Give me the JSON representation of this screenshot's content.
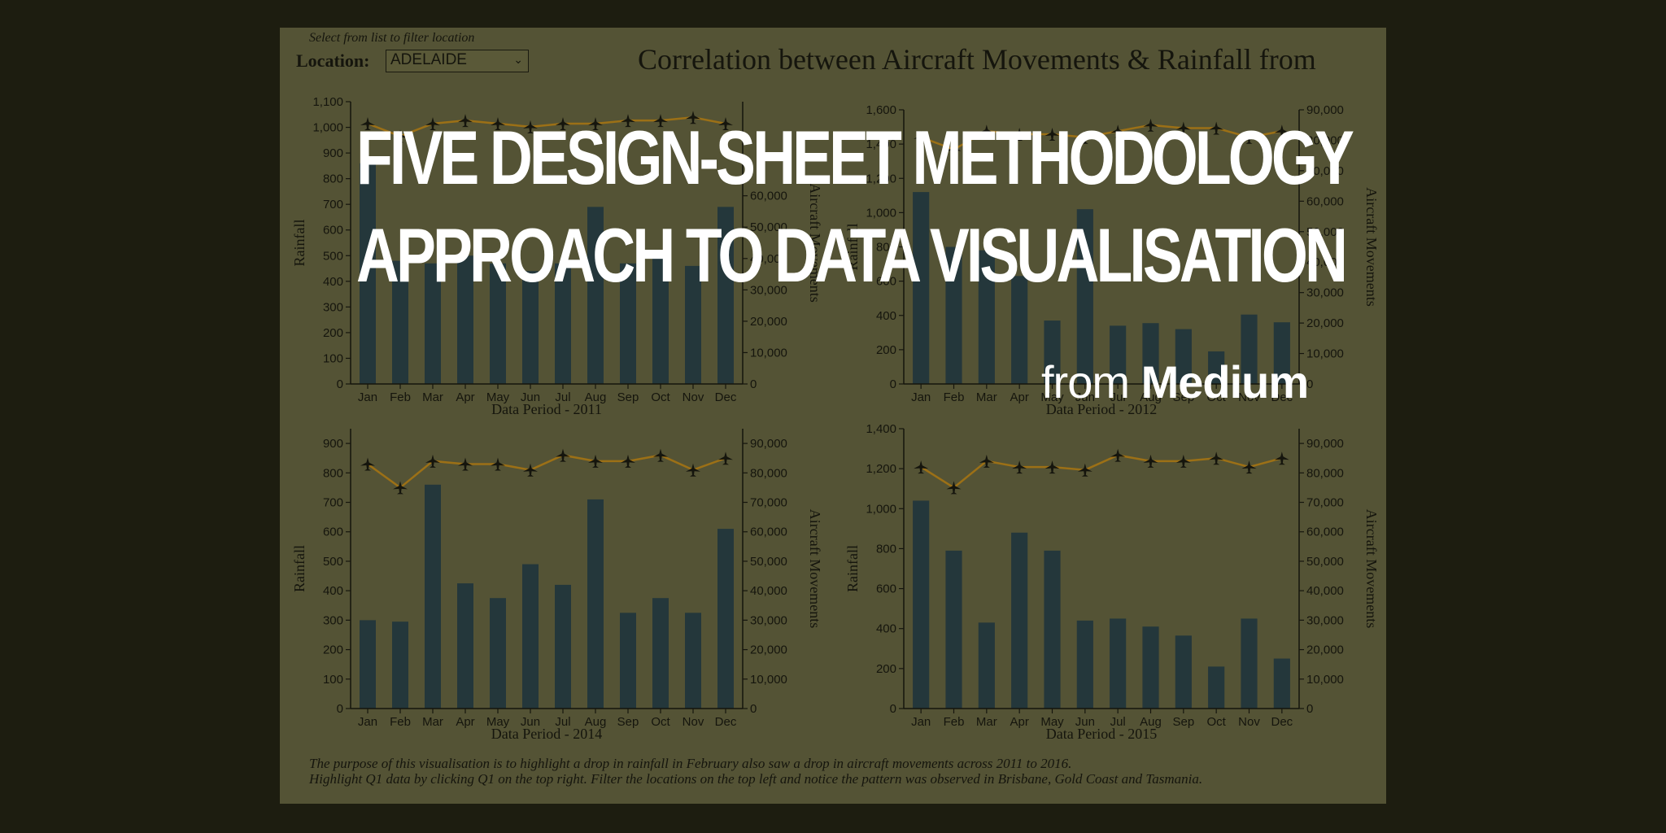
{
  "filter": {
    "hint": "Select from list to filter location",
    "label": "Location:",
    "selected": "ADELAIDE"
  },
  "title": "Correlation between Aircraft Movements & Rainfall from",
  "footnote": [
    "The purpose of this visualisation is to highlight a drop in rainfall in February also saw a drop in aircraft movements across 2011 to 2016.",
    "Highlight Q1 data by clicking Q1 on the top right. Filter the locations on the top left and notice the pattern was observed in Brisbane, Gold Coast and Tasmania."
  ],
  "overlay": {
    "headline_line1": "FIVE DESIGN-SHEET METHODOLOGY",
    "headline_line2": "APPROACH TO DATA VISUALISATION",
    "source_prefix": "from",
    "source_name": "Medium"
  },
  "colors": {
    "bar": "#24373b",
    "line": "#9c7016",
    "axis": "#15150d",
    "overlay_text": "#ffffff"
  },
  "chart_data": [
    {
      "type": "bar",
      "xlabel": "Data Period - 2011",
      "ylabel": "Rainfall",
      "y2label": "Aircraft Movements",
      "categories": [
        "Jan",
        "Feb",
        "Mar",
        "Apr",
        "May",
        "Jun",
        "Jul",
        "Aug",
        "Sep",
        "Oct",
        "Nov",
        "Dec"
      ],
      "values": [
        860,
        480,
        470,
        500,
        470,
        440,
        470,
        690,
        470,
        510,
        460,
        690
      ],
      "ylim": [
        0,
        1100
      ],
      "yticks": [
        0,
        100,
        200,
        300,
        400,
        500,
        600,
        700,
        800,
        900,
        1000,
        1100
      ],
      "line_values": [
        83000,
        79000,
        83000,
        84000,
        83000,
        82000,
        83000,
        83000,
        84000,
        84000,
        85000,
        83000
      ],
      "y2lim": [
        0,
        90000
      ],
      "y2ticks": [
        0,
        10000,
        20000,
        30000,
        40000,
        50000,
        60000
      ]
    },
    {
      "type": "bar",
      "xlabel": "Data Period - 2012",
      "ylabel": "Rainfall",
      "y2label": "Aircraft Movements",
      "categories": [
        "Jan",
        "Feb",
        "Mar",
        "Apr",
        "May",
        "Jun",
        "Jul",
        "Aug",
        "Sep",
        "Oct",
        "Nov",
        "Dec"
      ],
      "values": [
        1120,
        800,
        780,
        630,
        370,
        1020,
        340,
        355,
        320,
        190,
        405,
        360
      ],
      "ylim": [
        0,
        1600
      ],
      "yticks": [
        0,
        200,
        400,
        600,
        800,
        1000,
        1200,
        1400,
        1600
      ],
      "line_values": [
        81000,
        77000,
        83000,
        82000,
        82000,
        81000,
        83000,
        85000,
        84000,
        84000,
        81000,
        83000
      ],
      "y2lim": [
        0,
        90000
      ],
      "y2ticks": [
        0,
        10000,
        20000,
        30000,
        40000,
        50000,
        60000,
        70000,
        80000,
        90000
      ]
    },
    {
      "type": "bar",
      "xlabel": "Data Period - 2014",
      "ylabel": "Rainfall",
      "y2label": "Aircraft Movements",
      "categories": [
        "Jan",
        "Feb",
        "Mar",
        "Apr",
        "May",
        "Jun",
        "Jul",
        "Aug",
        "Sep",
        "Oct",
        "Nov",
        "Dec"
      ],
      "values": [
        300,
        295,
        760,
        425,
        375,
        490,
        420,
        710,
        325,
        375,
        325,
        610
      ],
      "ylim": [
        0,
        950
      ],
      "yticks": [
        0,
        100,
        200,
        300,
        400,
        500,
        600,
        700,
        800,
        900
      ],
      "line_values": [
        83000,
        75000,
        84000,
        83000,
        83000,
        81000,
        86000,
        84000,
        84000,
        86000,
        81000,
        85000
      ],
      "y2lim": [
        0,
        95000
      ],
      "y2ticks": [
        0,
        10000,
        20000,
        30000,
        40000,
        50000,
        60000,
        70000,
        80000,
        90000
      ]
    },
    {
      "type": "bar",
      "xlabel": "Data Period - 2015",
      "ylabel": "Rainfall",
      "y2label": "Aircraft Movements",
      "categories": [
        "Jan",
        "Feb",
        "Mar",
        "Apr",
        "May",
        "Jun",
        "Jul",
        "Aug",
        "Sep",
        "Oct",
        "Nov",
        "Dec"
      ],
      "values": [
        1040,
        790,
        430,
        880,
        790,
        440,
        450,
        410,
        365,
        210,
        450,
        250
      ],
      "ylim": [
        0,
        1400
      ],
      "yticks": [
        0,
        200,
        400,
        600,
        800,
        1000,
        1200,
        1400
      ],
      "line_values": [
        82000,
        75000,
        84000,
        82000,
        82000,
        81000,
        86000,
        84000,
        84000,
        85000,
        82000,
        85000
      ],
      "y2lim": [
        0,
        95000
      ],
      "y2ticks": [
        0,
        10000,
        20000,
        30000,
        40000,
        50000,
        60000,
        70000,
        80000,
        90000
      ]
    }
  ]
}
